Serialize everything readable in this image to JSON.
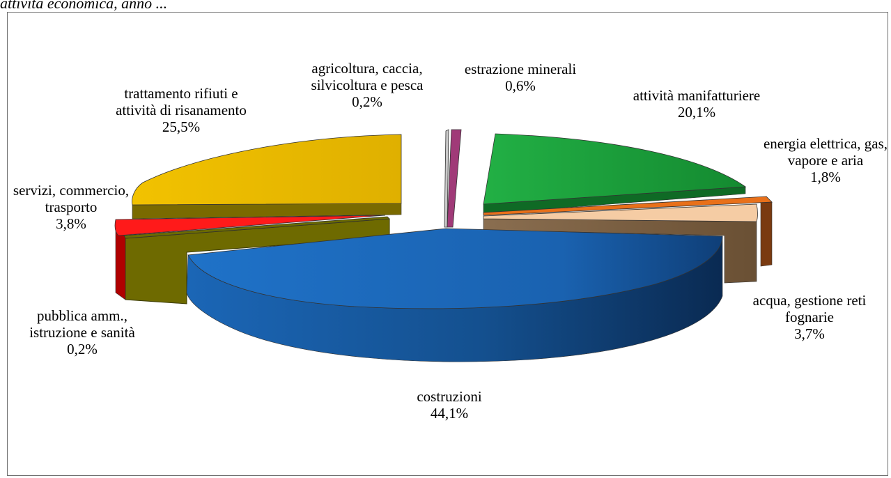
{
  "page": {
    "caption_fragment": "attività economica, anno ..."
  },
  "chart_data": {
    "type": "pie",
    "style": "3d-exploded",
    "slices": [
      {
        "category": "agricoltura, caccia, silvicoltura e pesca",
        "value": 0.2,
        "label_pct": "0,2%",
        "color": "#c0c0c0"
      },
      {
        "category": "estrazione minerali",
        "value": 0.6,
        "label_pct": "0,6%",
        "color": "#993366"
      },
      {
        "category": "attività manifatturiere",
        "value": 20.1,
        "label_pct": "20,1%",
        "color": "#1ea53c"
      },
      {
        "category": "energia elettrica, gas, vapore e aria",
        "value": 1.8,
        "label_pct": "1,8%",
        "color": "#e8701a"
      },
      {
        "category": "acqua, gestione reti fognarie",
        "value": 3.7,
        "label_pct": "3,7%",
        "color": "#f5c9a0"
      },
      {
        "category": "costruzioni",
        "value": 44.1,
        "label_pct": "44,1%",
        "color": "#1c6fc4"
      },
      {
        "category": "pubblica amm., istruzione e sanità",
        "value": 0.2,
        "label_pct": "0,2%",
        "color": "#808000"
      },
      {
        "category": "servizi, commercio, trasporto",
        "value": 3.8,
        "label_pct": "3,8%",
        "color": "#ff0000"
      },
      {
        "category": "trattamento rifiuti e attività di risanamento",
        "value": 25.5,
        "label_pct": "25,5%",
        "color": "#e8b800"
      }
    ],
    "labels": [
      {
        "lines": [
          "agricoltura, caccia,",
          "silvicoltura e pesca",
          "0,2%"
        ]
      },
      {
        "lines": [
          "estrazione minerali",
          "0,6%"
        ]
      },
      {
        "lines": [
          "attività manifatturiere",
          "20,1%"
        ]
      },
      {
        "lines": [
          "energia elettrica, gas,",
          "vapore e aria",
          "1,8%"
        ]
      },
      {
        "lines": [
          "acqua, gestione reti",
          "fognarie",
          "3,7%"
        ]
      },
      {
        "lines": [
          "costruzioni",
          "44,1%"
        ]
      },
      {
        "lines": [
          "pubblica amm.,",
          "istruzione e sanità",
          "0,2%"
        ]
      },
      {
        "lines": [
          "servizi, commercio,",
          "trasporto",
          "3,8%"
        ]
      },
      {
        "lines": [
          "trattamento rifiuti e",
          "attività di risanamento",
          "25,5%"
        ]
      }
    ],
    "legend": "none",
    "title": ""
  }
}
